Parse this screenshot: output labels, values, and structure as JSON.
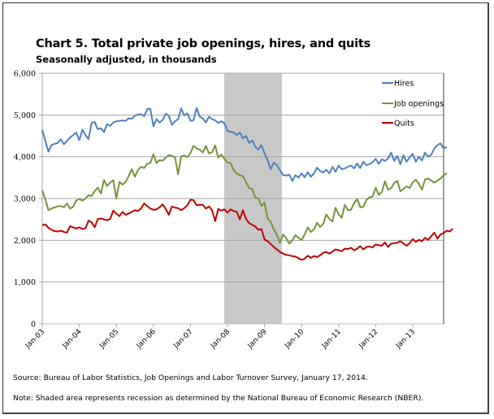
{
  "header": {
    "title": "Chart 5. Total private job openings, hires, and quits",
    "subtitle": "Seasonally adjusted, in thousands"
  },
  "footer": {
    "source": "Source: Bureau of Labor Statistics, Job Openings and Labor Turnover Survey, January 17, 2014.",
    "note": "Note: Shaded area represents recession as determined by the National Bureau of Economic Research (NBER)."
  },
  "chart_data": {
    "type": "line",
    "title": "Chart 5. Total private job openings, hires, and quits",
    "subtitle": "Seasonally adjusted, in thousands",
    "xlabel": "",
    "ylabel": "",
    "ylim": [
      0,
      6000
    ],
    "yticks": [
      0,
      1000,
      2000,
      3000,
      4000,
      5000,
      6000
    ],
    "ytick_labels": [
      "0",
      "1,000",
      "2,000",
      "3,000",
      "4,000",
      "5,000",
      "6,000"
    ],
    "x_start": "2003-01",
    "x_frequency": "monthly",
    "xtick_labels": [
      "Jan-03",
      "Jan-04",
      "Jan-05",
      "Jan-06",
      "Jan-07",
      "Jan-08",
      "Jan-09",
      "Jan-10",
      "Jan-11",
      "Jan-12",
      "Jan-13"
    ],
    "grid": "horizontal",
    "legend": "top-right",
    "shaded_regions": [
      {
        "label": "Recession (NBER)",
        "start": "2007-12",
        "end": "2009-06",
        "color": "#c8c8c8"
      }
    ],
    "series": [
      {
        "name": "Hires",
        "color": "#4f81bd",
        "values": [
          4650,
          4380,
          4120,
          4280,
          4310,
          4330,
          4420,
          4300,
          4380,
          4460,
          4520,
          4580,
          4400,
          4650,
          4520,
          4420,
          4820,
          4830,
          4660,
          4680,
          4590,
          4780,
          4740,
          4820,
          4850,
          4860,
          4870,
          4860,
          4920,
          4910,
          4980,
          5010,
          5020,
          4970,
          5140,
          5150,
          4730,
          4900,
          4820,
          4880,
          5030,
          4980,
          4760,
          4850,
          4900,
          5160,
          4990,
          5040,
          4860,
          4870,
          5170,
          4960,
          4920,
          4820,
          4960,
          4900,
          4870,
          4810,
          4850,
          4800,
          4620,
          4600,
          4580,
          4520,
          4580,
          4440,
          4500,
          4330,
          4390,
          4240,
          4170,
          4280,
          4080,
          3920,
          3700,
          3860,
          3800,
          3680,
          3560,
          3550,
          3570,
          3420,
          3560,
          3500,
          3600,
          3510,
          3630,
          3520,
          3600,
          3740,
          3660,
          3620,
          3690,
          3600,
          3760,
          3640,
          3790,
          3700,
          3720,
          3760,
          3790,
          3720,
          3840,
          3730,
          3880,
          3800,
          3820,
          3870,
          3950,
          3830,
          3940,
          3900,
          3960,
          4100,
          3900,
          4020,
          3820,
          4040,
          3880,
          3990,
          4070,
          3880,
          4000,
          3910,
          4100,
          4000,
          4050,
          4200,
          4280,
          4320,
          4200,
          4230
        ]
      },
      {
        "name": "Job openings",
        "color": "#77933c",
        "values": [
          3200,
          2980,
          2720,
          2760,
          2790,
          2810,
          2820,
          2790,
          2880,
          2760,
          2800,
          2950,
          2990,
          2950,
          3000,
          3080,
          3060,
          3180,
          3260,
          3120,
          3440,
          3300,
          3380,
          3440,
          3000,
          3400,
          3330,
          3400,
          3540,
          3700,
          3520,
          3680,
          3760,
          3730,
          3830,
          3850,
          4060,
          3850,
          3920,
          3900,
          3980,
          4040,
          4020,
          3990,
          3580,
          4010,
          4030,
          3990,
          4090,
          4260,
          4200,
          4170,
          4100,
          4260,
          4080,
          4110,
          4270,
          3980,
          4050,
          3950,
          3860,
          3850,
          3680,
          3600,
          3560,
          3530,
          3390,
          3250,
          3230,
          3020,
          3000,
          2820,
          2900,
          2520,
          2440,
          2260,
          2130,
          1940,
          2140,
          2050,
          1920,
          2000,
          2120,
          2060,
          2010,
          2140,
          2310,
          2200,
          2260,
          2420,
          2320,
          2390,
          2620,
          2510,
          2450,
          2780,
          2620,
          2540,
          2850,
          2720,
          2730,
          2890,
          2990,
          2790,
          2800,
          2970,
          3030,
          3050,
          3260,
          3090,
          3160,
          3410,
          3210,
          3250,
          3370,
          3420,
          3170,
          3230,
          3290,
          3250,
          3390,
          3450,
          3350,
          3210,
          3460,
          3480,
          3430,
          3380,
          3430,
          3480,
          3550,
          3610
        ]
      },
      {
        "name": "Quits",
        "color": "#c00000",
        "values": [
          2360,
          2380,
          2300,
          2250,
          2220,
          2210,
          2230,
          2200,
          2180,
          2340,
          2310,
          2280,
          2310,
          2270,
          2290,
          2470,
          2430,
          2310,
          2510,
          2520,
          2500,
          2480,
          2510,
          2710,
          2640,
          2580,
          2680,
          2610,
          2640,
          2680,
          2720,
          2700,
          2760,
          2880,
          2820,
          2760,
          2730,
          2740,
          2790,
          2860,
          2750,
          2610,
          2810,
          2780,
          2770,
          2720,
          2770,
          2840,
          2970,
          2960,
          2840,
          2850,
          2850,
          2760,
          2810,
          2720,
          2460,
          2750,
          2710,
          2740,
          2660,
          2740,
          2700,
          2680,
          2500,
          2720,
          2510,
          2410,
          2370,
          2330,
          2250,
          2270,
          2020,
          1980,
          1910,
          1840,
          1780,
          1720,
          1680,
          1650,
          1640,
          1620,
          1610,
          1570,
          1530,
          1560,
          1630,
          1580,
          1620,
          1600,
          1640,
          1700,
          1720,
          1680,
          1730,
          1780,
          1760,
          1740,
          1800,
          1790,
          1820,
          1760,
          1800,
          1860,
          1780,
          1840,
          1850,
          1830,
          1900,
          1880,
          1870,
          1950,
          1840,
          1920,
          1930,
          1940,
          1980,
          1920,
          1870,
          1930,
          2030,
          1960,
          2010,
          1980,
          2060,
          2010,
          2100,
          2180,
          2040,
          2140,
          2170,
          2230,
          2210,
          2280
        ]
      }
    ]
  }
}
